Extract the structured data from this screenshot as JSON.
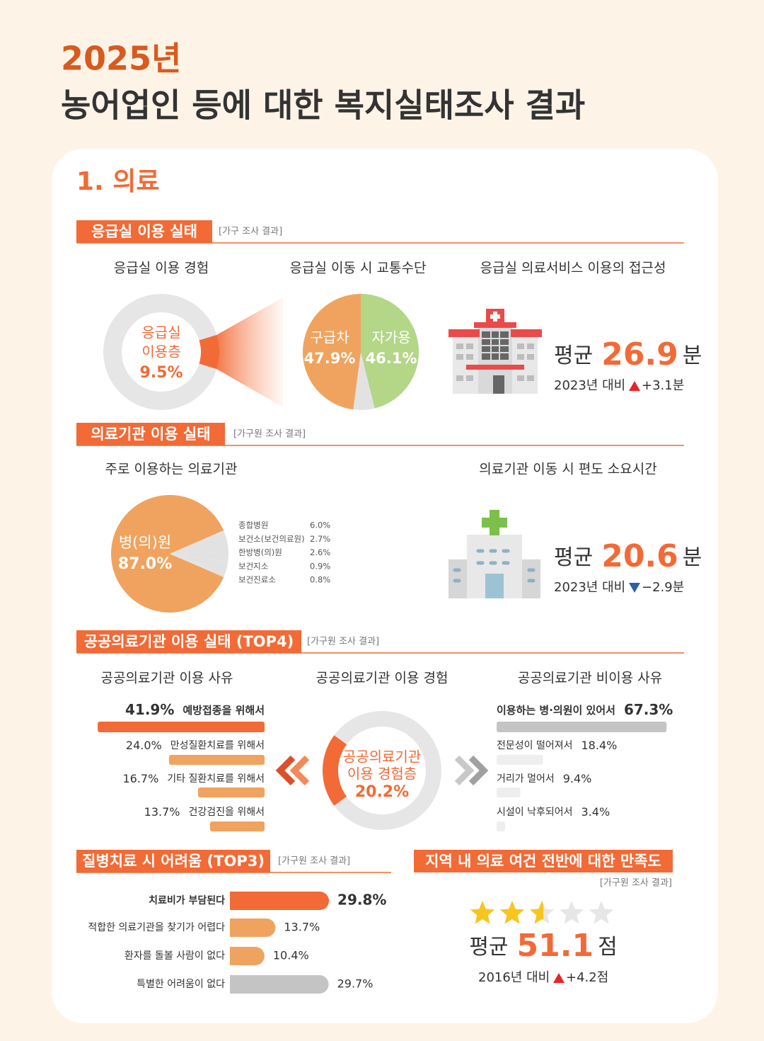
{
  "header": {
    "year": "2025년",
    "title": "농어업인 등에 대한 복지실태조사 결과"
  },
  "section": "1. 의료",
  "emergency": {
    "title": "응급실 이용 실태",
    "note": "[가구 조사 결과]",
    "experience": {
      "title": "응급실 이용 경험",
      "label_lines": [
        "응급실",
        "이용층"
      ],
      "value": 9.5,
      "value_label": "9.5%"
    },
    "transport": {
      "title": "응급실 이동 시 교통수단",
      "slices": [
        {
          "name": "구급차",
          "value": 47.9,
          "value_label": "47.9%",
          "color": "#f0a35e"
        },
        {
          "name": "자가용",
          "value": 46.1,
          "value_label": "46.1%",
          "color": "#b3d687"
        }
      ]
    },
    "access": {
      "title": "응급실 의료서비스 이용의 접근성",
      "prefix": "평균",
      "value": 26.9,
      "unit": "분",
      "compare": "2023년 대비",
      "change": 3.1,
      "change_label": "+3.1분"
    }
  },
  "institution": {
    "title": "의료기관 이용 실태",
    "note": "[가구원 조사 결과]",
    "main": {
      "title": "주로 이용하는 의료기관",
      "name": "병(의)원",
      "value": 87.0,
      "value_label": "87.0%",
      "others": [
        {
          "name": "종합병원",
          "value": 6.0,
          "value_label": "6.0%"
        },
        {
          "name": "보건소(보건의료원)",
          "value": 2.7,
          "value_label": "2.7%"
        },
        {
          "name": "한방병(의)원",
          "value": 2.6,
          "value_label": "2.6%"
        },
        {
          "name": "보건지소",
          "value": 0.9,
          "value_label": "0.9%"
        },
        {
          "name": "보건진료소",
          "value": 0.8,
          "value_label": "0.8%"
        }
      ]
    },
    "travel": {
      "title": "의료기관 이동 시 편도 소요시간",
      "prefix": "평균",
      "value": 20.6,
      "unit": "분",
      "compare": "2023년 대비",
      "change": -2.9,
      "change_label": "−2.9분"
    }
  },
  "public": {
    "title": "공공의료기관 이용 실태 (TOP4)",
    "note": "[가구원 조사 결과]",
    "reasons": {
      "title": "공공의료기관 이용 사유",
      "items": [
        {
          "name": "예방접종을 위해서",
          "value": 41.9,
          "value_label": "41.9%"
        },
        {
          "name": "만성질환치료를 위해서",
          "value": 24.0,
          "value_label": "24.0%"
        },
        {
          "name": "기타 질환치료를 위해서",
          "value": 16.7,
          "value_label": "16.7%"
        },
        {
          "name": "건강검진을 위해서",
          "value": 13.7,
          "value_label": "13.7%"
        }
      ]
    },
    "experience": {
      "title": "공공의료기관 이용 경험",
      "label_lines": [
        "공공의료기관",
        "이용 경험층"
      ],
      "value": 20.2,
      "value_label": "20.2%"
    },
    "non_use": {
      "title": "공공의료기관 비이용 사유",
      "items": [
        {
          "name": "이용하는 병·의원이 있어서",
          "value": 67.3,
          "value_label": "67.3%"
        },
        {
          "name": "전문성이 떨어져서",
          "value": 18.4,
          "value_label": "18.4%"
        },
        {
          "name": "거리가 멀어서",
          "value": 9.4,
          "value_label": "9.4%"
        },
        {
          "name": "시설이 낙후되어서",
          "value": 3.4,
          "value_label": "3.4%"
        }
      ]
    }
  },
  "difficulty": {
    "title": "질병치료 시 어려움 (TOP3)",
    "note": "[가구원 조사 결과]",
    "items": [
      {
        "name": "치료비가 부담된다",
        "value": 29.8,
        "value_label": "29.8%",
        "color": "#f26a36"
      },
      {
        "name": "적합한 의료기관을 찾기가 어렵다",
        "value": 13.7,
        "value_label": "13.7%",
        "color": "#f0a35e"
      },
      {
        "name": "환자를 돌볼 사람이 없다",
        "value": 10.4,
        "value_label": "10.4%",
        "color": "#f0a35e"
      },
      {
        "name": "특별한 어려움이 없다",
        "value": 29.7,
        "value_label": "29.7%",
        "color": "#c4c4c4"
      }
    ]
  },
  "satisfaction": {
    "title": "지역 내 의료 여건 전반에 대한 만족도",
    "note": "[가구원 조사 결과]",
    "star_count": 5,
    "scale": [
      0,
      100
    ],
    "prefix": "평균",
    "value": 51.1,
    "unit": "점",
    "compare": "2016년 대비",
    "change": 4.2,
    "change_label": "+4.2점"
  }
}
